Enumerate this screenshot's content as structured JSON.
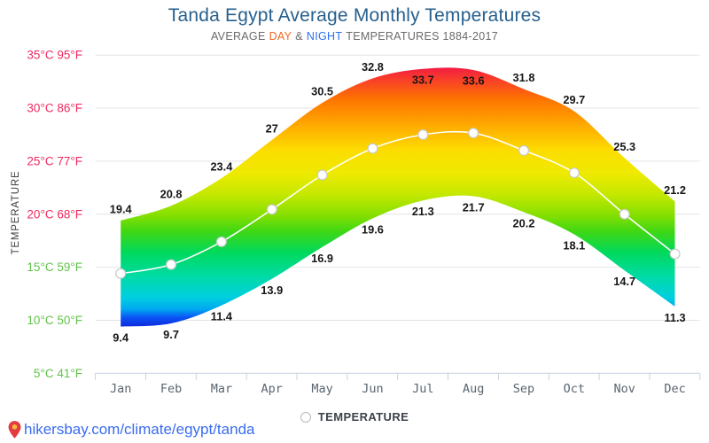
{
  "header": {
    "title": "Tanda Egypt Average Monthly Temperatures",
    "subtitle": {
      "prefix": "AVERAGE",
      "day": "DAY",
      "amp": "&",
      "night": "NIGHT",
      "suffix": "TEMPERATURES 1884-2017"
    }
  },
  "chart_data": {
    "type": "area",
    "title": "Tanda Egypt Average Monthly Temperatures",
    "subtitle": "AVERAGE DAY & NIGHT TEMPERATURES 1884-2017",
    "categories": [
      "Jan",
      "Feb",
      "Mar",
      "Apr",
      "May",
      "Jun",
      "Jul",
      "Aug",
      "Sep",
      "Oct",
      "Nov",
      "Dec"
    ],
    "series": [
      {
        "name": "day",
        "values": [
          19.4,
          20.8,
          23.4,
          27,
          30.5,
          32.8,
          33.7,
          33.6,
          31.8,
          29.7,
          25.3,
          21.2
        ]
      },
      {
        "name": "night",
        "values": [
          9.4,
          9.7,
          11.4,
          13.9,
          16.9,
          19.6,
          21.3,
          21.7,
          20.2,
          18.1,
          14.7,
          11.3
        ]
      }
    ],
    "ylabel": "TEMPERATURE",
    "legend_label": "TEMPERATURE",
    "legend_position": "bottom",
    "grid": true,
    "ylim": [
      5,
      35
    ],
    "y_ticks": [
      {
        "t": 35,
        "label": "35°C 95°F",
        "color": "#ef2a60"
      },
      {
        "t": 30,
        "label": "30°C 86°F",
        "color": "#ef2a60"
      },
      {
        "t": 25,
        "label": "25°C 77°F",
        "color": "#ef2a60"
      },
      {
        "t": 20,
        "label": "20°C 68°F",
        "color": "#ef2a60"
      },
      {
        "t": 15,
        "label": "15°C 59°F",
        "color": "#62c24c"
      },
      {
        "t": 10,
        "label": "10°C 50°F",
        "color": "#62c24c"
      },
      {
        "t": 5,
        "label": "5°C 41°F",
        "color": "#62c24c"
      }
    ],
    "gradient_stops": [
      {
        "o": 0.0,
        "c": "#ef0e4e"
      },
      {
        "o": 0.06,
        "c": "#f83b2b"
      },
      {
        "o": 0.14,
        "c": "#fd7500"
      },
      {
        "o": 0.24,
        "c": "#ffab00"
      },
      {
        "o": 0.33,
        "c": "#fcdc00"
      },
      {
        "o": 0.42,
        "c": "#eeea00"
      },
      {
        "o": 0.5,
        "c": "#c4e800"
      },
      {
        "o": 0.58,
        "c": "#83df00"
      },
      {
        "o": 0.64,
        "c": "#3fd714"
      },
      {
        "o": 0.72,
        "c": "#00d95d"
      },
      {
        "o": 0.81,
        "c": "#00dba6"
      },
      {
        "o": 0.89,
        "c": "#00cfe0"
      },
      {
        "o": 0.935,
        "c": "#00a6f0"
      },
      {
        "o": 0.965,
        "c": "#0b55f5"
      },
      {
        "o": 1.0,
        "c": "#0c28dd"
      }
    ]
  },
  "legend": {
    "label": "TEMPERATURE"
  },
  "footer": {
    "url": "hikersbay.com/climate/egypt/tanda"
  },
  "colors": {
    "title": "#27608e",
    "subtitle_gray": "#6a6a6a",
    "day": "#f06a21",
    "night": "#2d70f0",
    "link": "#3a6cf0",
    "pin_body": "#e23b41",
    "pin_dot": "#f6b73c",
    "grid": "#e4e4e4",
    "axis": "#c6d2e0",
    "month_label": "#5a6570",
    "value_label": "#161616",
    "avg_line": "#ffffff",
    "marker_stroke": "#c8c8c8",
    "axis_title": "#3f3f3f"
  }
}
